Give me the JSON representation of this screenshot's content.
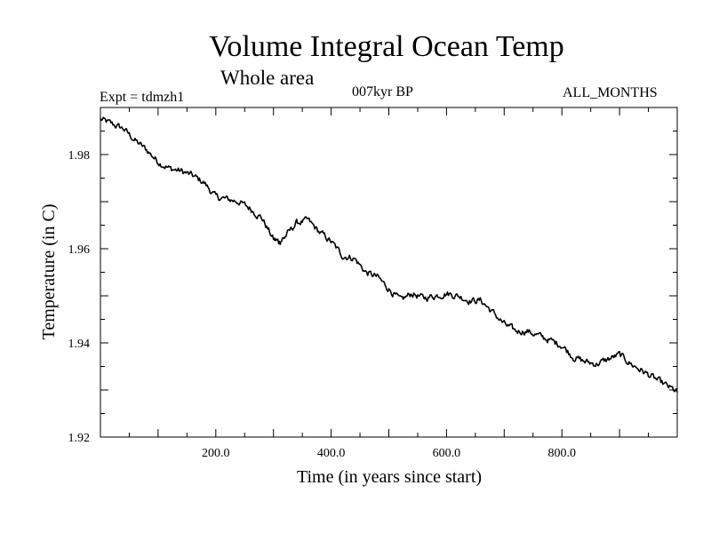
{
  "header": {
    "title": "Volume Integral Ocean Temp",
    "subtitle": "Whole area",
    "experiment": "Expt = tdmzh1",
    "period": "007kyr BP",
    "months": "ALL_MONTHS"
  },
  "chart_data": {
    "type": "line",
    "title": "Volume Integral Ocean Temp",
    "subtitle": "Whole area",
    "xlabel": "Time (in years since start)",
    "ylabel": "Temperature (in C)",
    "xlim": [
      0,
      1000
    ],
    "ylim": [
      1.92,
      1.99
    ],
    "x_ticks": [
      200,
      400,
      600,
      800
    ],
    "x_tick_labels": [
      "200.0",
      "400.0",
      "600.0",
      "800.0"
    ],
    "y_ticks": [
      1.92,
      1.94,
      1.96,
      1.98
    ],
    "y_tick_labels": [
      "1.92",
      "1.94",
      "1.96",
      "1.98"
    ],
    "grid": false,
    "series": [
      {
        "name": "tdmzh1",
        "color": "#000000",
        "x": [
          0,
          20,
          40,
          60,
          80,
          100,
          120,
          140,
          160,
          180,
          200,
          220,
          240,
          260,
          280,
          300,
          310,
          320,
          340,
          360,
          380,
          400,
          420,
          440,
          460,
          480,
          500,
          520,
          540,
          560,
          580,
          600,
          620,
          640,
          660,
          680,
          700,
          720,
          740,
          760,
          780,
          800,
          820,
          840,
          860,
          880,
          900,
          920,
          940,
          960,
          980,
          1000
        ],
        "values": [
          1.9875,
          1.9865,
          1.9855,
          1.983,
          1.981,
          1.9785,
          1.977,
          1.9765,
          1.9755,
          1.974,
          1.971,
          1.9705,
          1.97,
          1.9685,
          1.9665,
          1.962,
          1.9615,
          1.9625,
          1.9655,
          1.966,
          1.9635,
          1.9615,
          1.9585,
          1.958,
          1.955,
          1.954,
          1.9515,
          1.949,
          1.9505,
          1.9495,
          1.95,
          1.9505,
          1.95,
          1.949,
          1.949,
          1.9465,
          1.944,
          1.9425,
          1.9425,
          1.9415,
          1.9405,
          1.9395,
          1.937,
          1.936,
          1.9355,
          1.9365,
          1.9375,
          1.9355,
          1.934,
          1.9325,
          1.931,
          1.9295
        ]
      }
    ]
  }
}
